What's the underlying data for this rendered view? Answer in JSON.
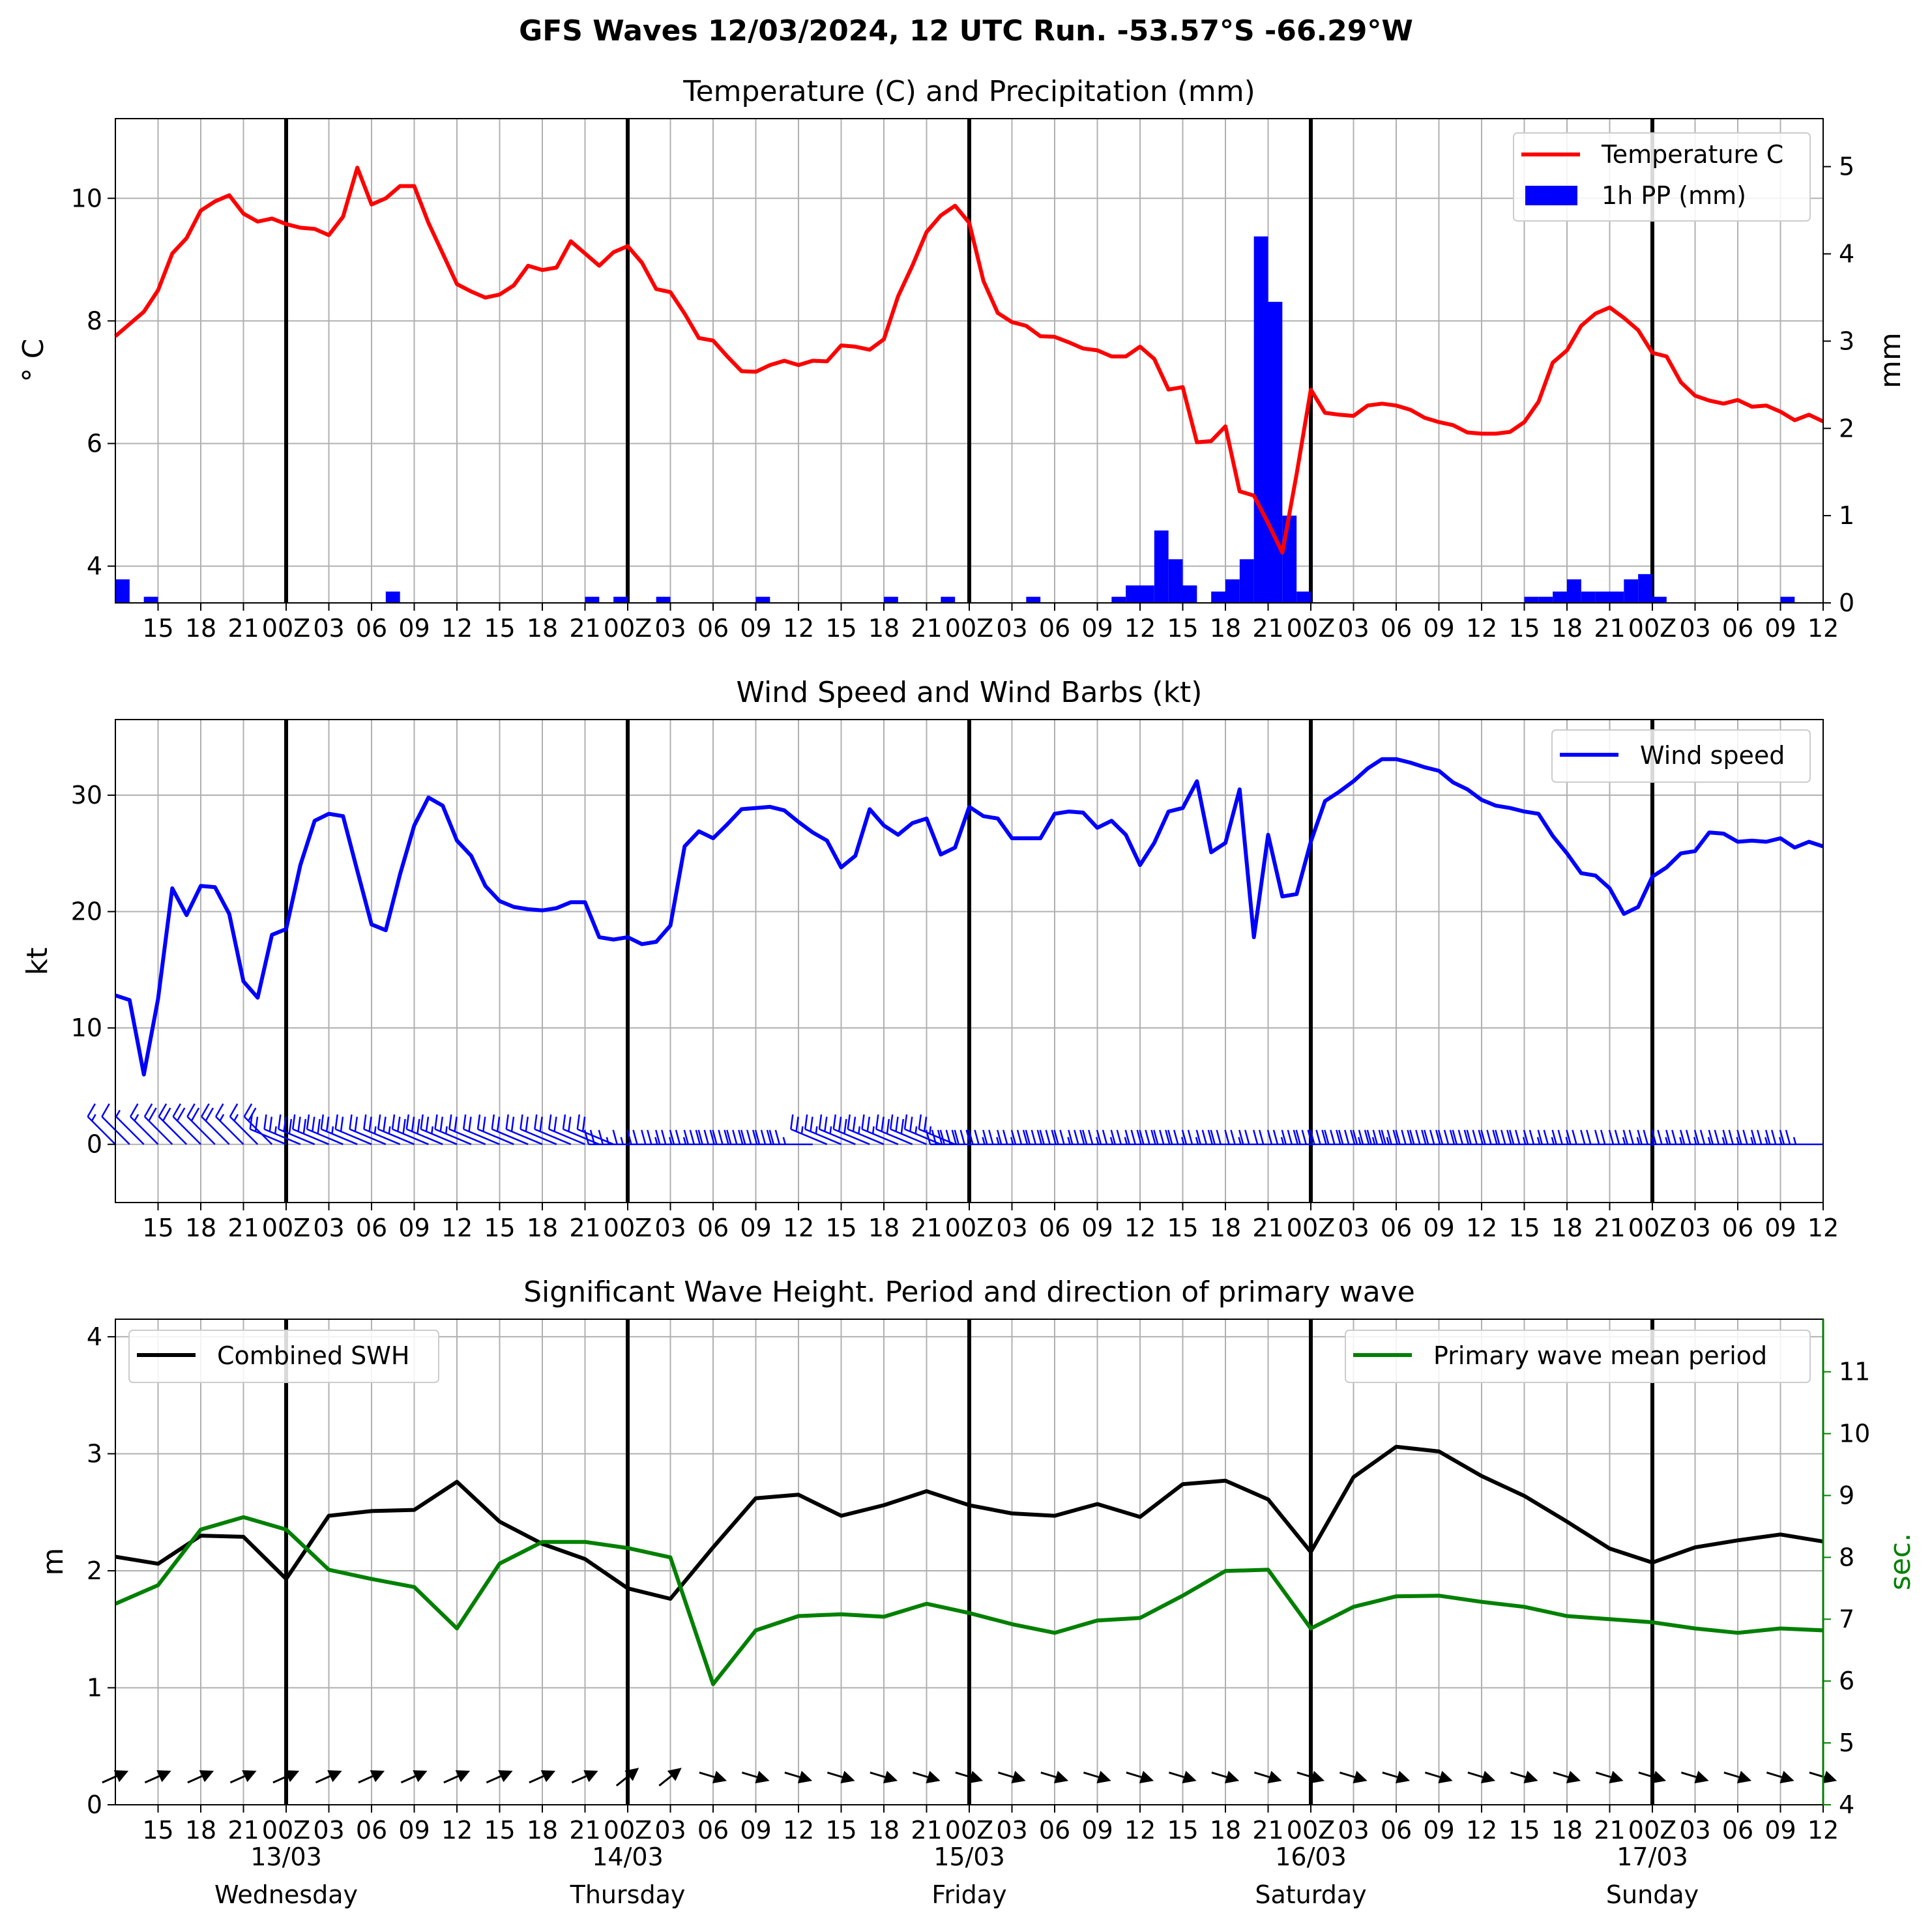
{
  "figure_title": "GFS Waves 12/03/2024, 12 UTC Run. -53.57°S -66.29°W",
  "x_axis": {
    "hour_labels": [
      "15",
      "18",
      "21",
      "00Z",
      "03",
      "06",
      "09",
      "12",
      "15",
      "18",
      "21",
      "00Z",
      "03",
      "06",
      "09",
      "12",
      "15",
      "18",
      "21",
      "00Z",
      "03",
      "06",
      "09",
      "12",
      "15",
      "18",
      "21",
      "00Z",
      "03",
      "06",
      "09",
      "12",
      "15",
      "18",
      "21",
      "00Z",
      "03",
      "06",
      "09",
      "12"
    ],
    "day_labels": [
      {
        "date": "13/03",
        "weekday": "Wednesday"
      },
      {
        "date": "14/03",
        "weekday": "Thursday"
      },
      {
        "date": "15/03",
        "weekday": "Friday"
      },
      {
        "date": "16/03",
        "weekday": "Saturday"
      },
      {
        "date": "17/03",
        "weekday": "Sunday"
      }
    ]
  },
  "colors": {
    "temperature": "#ff0000",
    "precip": "#0000ff",
    "wind": "#0000ff",
    "swh": "#000000",
    "period": "#008000",
    "grid": "#b0b0b0"
  },
  "chart_data": [
    {
      "type": "line",
      "title": "Temperature (C) and Precipitation (mm)",
      "ylabel": "° C",
      "ylabel_right": "mm",
      "x_unit": "hours after 12/03 12 UTC",
      "ylim": [
        3.4,
        11.3
      ],
      "ylim_right": [
        0,
        5.55
      ],
      "yticks": [
        4,
        6,
        8,
        10
      ],
      "yticks_right": [
        0,
        1,
        2,
        3,
        4,
        5
      ],
      "grid": true,
      "legend_position": "upper right",
      "series": [
        {
          "name": "Temperature C",
          "x_step_hours": 1,
          "values": [
            7.75,
            7.95,
            8.15,
            8.5,
            9.1,
            9.35,
            9.8,
            9.95,
            10.05,
            9.75,
            9.62,
            9.67,
            9.58,
            9.52,
            9.5,
            9.4,
            9.7,
            10.5,
            9.9,
            10.0,
            10.2,
            10.2,
            9.6,
            9.1,
            8.6,
            8.48,
            8.38,
            8.43,
            8.58,
            8.9,
            8.83,
            8.87,
            9.3,
            9.1,
            8.9,
            9.12,
            9.22,
            8.95,
            8.52,
            8.47,
            8.12,
            7.72,
            7.68,
            7.42,
            7.18,
            7.17,
            7.28,
            7.35,
            7.28,
            7.35,
            7.34,
            7.6,
            7.58,
            7.53,
            7.7,
            8.4,
            8.9,
            9.45,
            9.72,
            9.88,
            9.6,
            8.65,
            8.13,
            7.98,
            7.92,
            7.75,
            7.74,
            7.65,
            7.55,
            7.52,
            7.42,
            7.42,
            7.58,
            7.38,
            6.88,
            6.92,
            6.02,
            6.04,
            6.28,
            5.22,
            5.15,
            4.7,
            4.22,
            5.5,
            6.88,
            6.5,
            6.47,
            6.45,
            6.62,
            6.65,
            6.62,
            6.55,
            6.42,
            6.35,
            6.3,
            6.18,
            6.16,
            6.16,
            6.19,
            6.35,
            6.68,
            7.32,
            7.52,
            7.92,
            8.12,
            8.22,
            8.05,
            7.85,
            7.48,
            7.42,
            7.0,
            6.78,
            6.7,
            6.65,
            6.71,
            6.6,
            6.62,
            6.52,
            6.38,
            6.47,
            6.36
          ]
        },
        {
          "name": "1h PP (mm)",
          "type": "bar",
          "bars": [
            {
              "x": 0,
              "value": 0.27
            },
            {
              "x": 2,
              "value": 0.07
            },
            {
              "x": 19,
              "value": 0.13
            },
            {
              "x": 33,
              "value": 0.07
            },
            {
              "x": 35,
              "value": 0.07
            },
            {
              "x": 38,
              "value": 0.07
            },
            {
              "x": 45,
              "value": 0.07
            },
            {
              "x": 54,
              "value": 0.07
            },
            {
              "x": 58,
              "value": 0.07
            },
            {
              "x": 64,
              "value": 0.07
            },
            {
              "x": 70,
              "value": 0.07
            },
            {
              "x": 71,
              "value": 0.2
            },
            {
              "x": 72,
              "value": 0.2
            },
            {
              "x": 73,
              "value": 0.83
            },
            {
              "x": 74,
              "value": 0.5
            },
            {
              "x": 75,
              "value": 0.2
            },
            {
              "x": 77,
              "value": 0.13
            },
            {
              "x": 78,
              "value": 0.27
            },
            {
              "x": 79,
              "value": 0.5
            },
            {
              "x": 80,
              "value": 4.2
            },
            {
              "x": 81,
              "value": 3.45
            },
            {
              "x": 82,
              "value": 1.0
            },
            {
              "x": 83,
              "value": 0.13
            },
            {
              "x": 99,
              "value": 0.07
            },
            {
              "x": 100,
              "value": 0.07
            },
            {
              "x": 101,
              "value": 0.13
            },
            {
              "x": 102,
              "value": 0.27
            },
            {
              "x": 103,
              "value": 0.13
            },
            {
              "x": 104,
              "value": 0.13
            },
            {
              "x": 105,
              "value": 0.13
            },
            {
              "x": 106,
              "value": 0.27
            },
            {
              "x": 107,
              "value": 0.33
            },
            {
              "x": 108,
              "value": 0.07
            },
            {
              "x": 117,
              "value": 0.07
            }
          ]
        }
      ]
    },
    {
      "type": "line",
      "title": "Wind Speed and Wind Barbs (kt)",
      "ylabel": "kt",
      "x_unit": "hours after 12/03 12 UTC",
      "ylim": [
        -5,
        36.5
      ],
      "yticks": [
        0,
        10,
        20,
        30
      ],
      "grid": true,
      "legend_position": "upper right",
      "series": [
        {
          "name": "Wind speed",
          "x_step_hours": 1,
          "values": [
            12.8,
            12.4,
            6.0,
            12.5,
            22.0,
            19.7,
            22.2,
            22.1,
            19.8,
            14.0,
            12.6,
            18.0,
            18.5,
            24.0,
            27.8,
            28.4,
            28.2,
            23.5,
            18.9,
            18.4,
            23.2,
            27.4,
            29.8,
            29.1,
            26.1,
            24.8,
            22.2,
            20.9,
            20.4,
            20.2,
            20.1,
            20.3,
            20.8,
            20.8,
            17.8,
            17.6,
            17.8,
            17.2,
            17.4,
            18.8,
            25.6,
            26.9,
            26.3,
            27.5,
            28.8,
            28.9,
            29.0,
            28.7,
            27.7,
            26.8,
            26.1,
            23.8,
            24.8,
            28.8,
            27.4,
            26.6,
            27.6,
            28.0,
            24.9,
            25.5,
            29.0,
            28.2,
            28.0,
            26.3,
            26.3,
            26.3,
            28.4,
            28.6,
            28.5,
            27.2,
            27.8,
            26.6,
            24.0,
            25.9,
            28.6,
            28.9,
            31.2,
            25.1,
            25.9,
            30.5,
            17.8,
            26.6,
            21.3,
            21.5,
            26.0,
            29.5,
            30.3,
            31.2,
            32.3,
            33.1,
            33.1,
            32.8,
            32.4,
            32.1,
            31.1,
            30.5,
            29.6,
            29.1,
            28.9,
            28.6,
            28.4,
            26.5,
            25.0,
            23.3,
            23.1,
            22.0,
            19.8,
            20.4,
            23.0,
            23.8,
            25.0,
            25.2,
            26.8,
            26.7,
            26.0,
            26.1,
            26.0,
            26.3,
            25.5,
            26.0,
            25.6
          ]
        }
      ],
      "wind_barbs": {
        "direction_sectors_by_hour": [
          {
            "hours": [
              0,
              11
            ],
            "from": "NW"
          },
          {
            "hours": [
              12,
              35
            ],
            "from": "WNW"
          },
          {
            "hours": [
              36,
              49
            ],
            "from": "W"
          },
          {
            "hours": [
              50,
              59
            ],
            "from": "WNW"
          },
          {
            "hours": [
              60,
              120
            ],
            "from": "W"
          }
        ]
      }
    },
    {
      "type": "line",
      "title": "Significant Wave Height. Period and direction of primary wave",
      "ylabel": "m",
      "ylabel_right": "sec.",
      "x_unit": "hours after 12/03 12 UTC",
      "ylim": [
        0,
        4.15
      ],
      "ylim_right": [
        4,
        11.85
      ],
      "yticks": [
        0,
        1,
        2,
        3,
        4
      ],
      "yticks_right": [
        4,
        5,
        6,
        7,
        8,
        9,
        10,
        11
      ],
      "grid": true,
      "legend_positions": {
        "Combined SWH": "upper left",
        "Primary wave mean period": "upper right"
      },
      "series": [
        {
          "name": "Combined SWH",
          "x": [
            0,
            3,
            6,
            9,
            12,
            15,
            18,
            21,
            24,
            27,
            30,
            33,
            36,
            39,
            42,
            45,
            48,
            51,
            54,
            57,
            60,
            63,
            66,
            69,
            72,
            75,
            78,
            81,
            84,
            87,
            90,
            93,
            96,
            99,
            102,
            105,
            108,
            111,
            114,
            117,
            120
          ],
          "values": [
            2.12,
            2.06,
            2.3,
            2.29,
            1.93,
            2.47,
            2.51,
            2.52,
            2.76,
            2.42,
            2.23,
            2.1,
            1.85,
            1.76,
            2.2,
            2.62,
            2.65,
            2.47,
            2.56,
            2.68,
            2.56,
            2.49,
            2.47,
            2.57,
            2.46,
            2.74,
            2.77,
            2.61,
            2.16,
            2.8,
            3.06,
            3.02,
            2.81,
            2.64,
            2.42,
            2.19,
            2.07,
            2.2,
            2.26,
            2.31,
            2.25
          ]
        },
        {
          "name": "Primary wave mean period",
          "x": [
            0,
            3,
            6,
            9,
            12,
            15,
            18,
            21,
            24,
            27,
            30,
            33,
            36,
            39,
            42,
            45,
            48,
            51,
            54,
            57,
            60,
            63,
            66,
            69,
            72,
            75,
            78,
            81,
            84,
            87,
            90,
            93,
            96,
            99,
            102,
            105,
            108,
            111,
            114,
            117,
            120
          ],
          "values": [
            7.25,
            7.55,
            8.45,
            8.65,
            8.45,
            7.8,
            7.65,
            7.52,
            6.85,
            7.9,
            8.25,
            8.25,
            8.15,
            8.0,
            5.95,
            6.82,
            7.05,
            7.08,
            7.04,
            7.25,
            7.1,
            6.92,
            6.78,
            6.98,
            7.02,
            7.38,
            7.78,
            7.8,
            6.85,
            7.2,
            7.37,
            7.38,
            7.28,
            7.2,
            7.05,
            7.0,
            6.95,
            6.85,
            6.78,
            6.85,
            6.82
          ]
        }
      ],
      "wave_direction_arrows": {
        "arrow_every_hours": 3,
        "sectors_by_hour": [
          {
            "hours": [
              0,
              33
            ],
            "toward": "ENE"
          },
          {
            "hours": [
              36,
              39
            ],
            "toward": "NE"
          },
          {
            "hours": [
              42,
              120
            ],
            "toward": "ESE"
          }
        ]
      }
    }
  ]
}
